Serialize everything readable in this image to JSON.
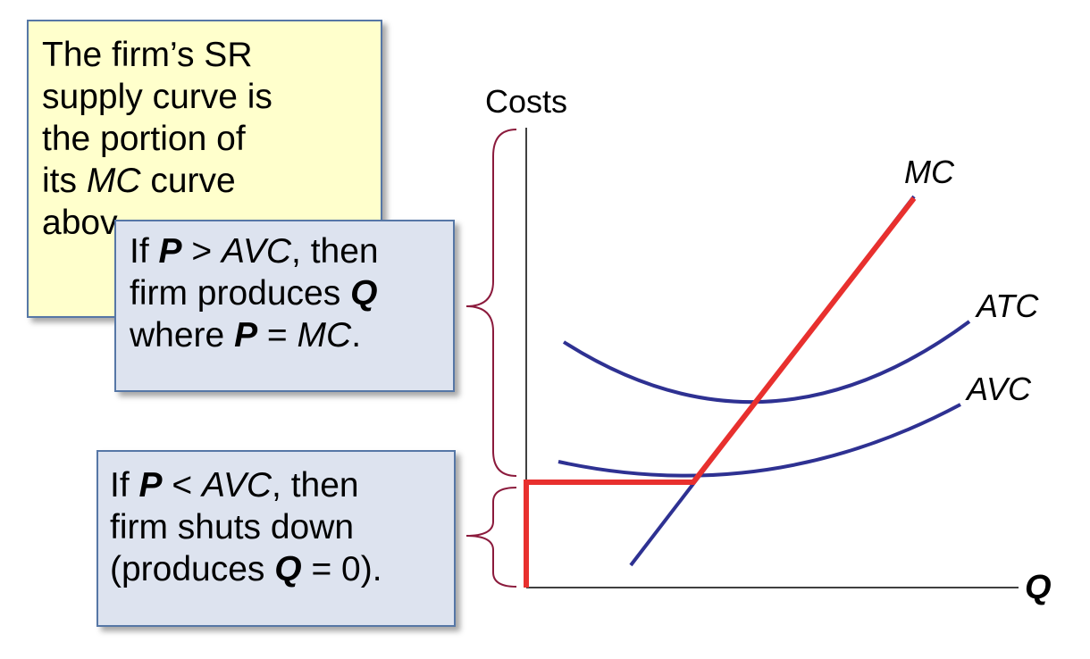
{
  "colors": {
    "curve_blue": "#2e3192",
    "supply_red": "#e8302e",
    "brace_maroon": "#8b1a3c",
    "yellow_box": "#ffffcc",
    "blue_box": "#dde3ef",
    "box_border": "#5677a6"
  },
  "axes": {
    "y_label": "Costs",
    "x_label": "Q"
  },
  "curves": {
    "mc": "MC",
    "atc": "ATC",
    "avc": "AVC"
  },
  "yellow_box": {
    "line1": "The firm’s SR",
    "line2": "supply curve is",
    "line3": "the portion of",
    "line4_a": "its ",
    "line4_b": "MC",
    "line4_c": " curve",
    "line5": "abov"
  },
  "box_produce": {
    "l1_a": "If ",
    "l1_b": "P",
    "l1_c": " > ",
    "l1_d": "AVC",
    "l1_e": ", then",
    "l2_a": "firm produces ",
    "l2_b": "Q",
    "l3_a": "where ",
    "l3_b": "P",
    "l3_c": " = ",
    "l3_d": "MC",
    "l3_e": "."
  },
  "box_shutdown": {
    "l1_a": "If ",
    "l1_b": "P",
    "l1_c": " < ",
    "l1_d": "AVC",
    "l1_e": ", then",
    "l2": "firm shuts down",
    "l3_a": "(produces ",
    "l3_b": "Q",
    "l3_c": " = 0)."
  }
}
